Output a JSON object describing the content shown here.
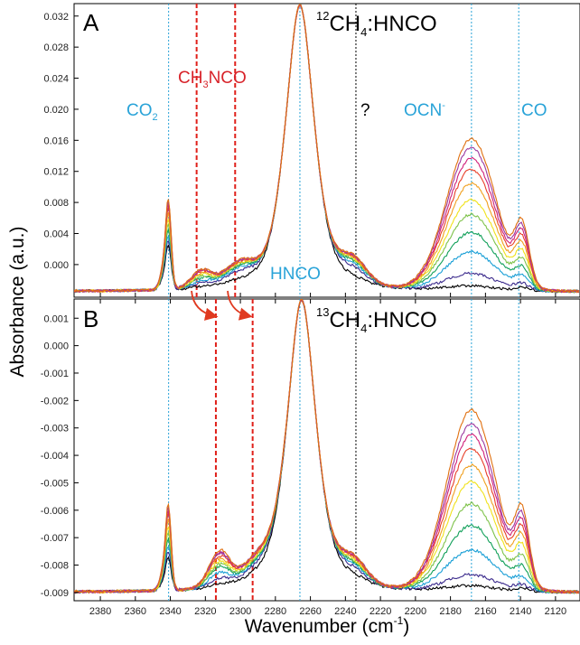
{
  "chart_data": {
    "type": "line",
    "xlabel": "Wavenumber (cm",
    "xlabel_sup": "-1",
    "xlabel_close": ")",
    "ylabel": "Absorbance (a.u.)",
    "x_range": [
      2395,
      2106
    ],
    "x_ticks": [
      2380,
      2360,
      2340,
      2320,
      2300,
      2280,
      2260,
      2240,
      2220,
      2200,
      2180,
      2160,
      2140,
      2120
    ],
    "x_tick_labels": [
      "2380",
      "2360",
      "2340",
      "2320",
      "2300",
      "2280",
      "2260",
      "2240",
      "2220",
      "2200",
      "2180",
      "2160",
      "2140",
      "2120"
    ],
    "colors": {
      "spectra": [
        "#000000",
        "#3b2a8c",
        "#1a9fd6",
        "#12a05a",
        "#7ec24a",
        "#f0e21a",
        "#f0a020",
        "#e8402a",
        "#d0207a",
        "#9b3aa0",
        "#e07010"
      ],
      "marker_blue": "#29a3d8",
      "marker_red": "#e0201a",
      "marker_black": "#000000",
      "ch3nco_text": "#d8232a",
      "arrow": "#e03a20"
    },
    "panels": [
      {
        "panel_label": "A",
        "title_sup": "12",
        "title_main": "CH",
        "title_sub": "4",
        "title_end": ":HNCO",
        "y_range": [
          -0.0042,
          0.0336
        ],
        "y_ticks": [
          0.032,
          0.028,
          0.024,
          0.02,
          0.016,
          0.012,
          0.008,
          0.004,
          0.0
        ],
        "y_tick_labels": [
          "0.032",
          "0.028",
          "0.024",
          "0.020",
          "0.016",
          "0.012",
          "0.008",
          "0.004",
          "0.000"
        ],
        "baseline": -0.0035,
        "noise_amp": 0.00016,
        "peaks": {
          "hnco_center": 2266,
          "hnco_top": 0.0334,
          "ocn_center": 2168
        },
        "series": [
          {
            "co2": 0.0048,
            "ch3nco": 0.0002,
            "shoulder": 0.001,
            "ocn": 0.0006,
            "co": 0.0004
          },
          {
            "co2": 0.0054,
            "ch3nco": 0.0006,
            "shoulder": 0.003,
            "ocn": 0.0022,
            "co": 0.0008
          },
          {
            "co2": 0.006,
            "ch3nco": 0.0009,
            "shoulder": 0.0038,
            "ocn": 0.005,
            "co": 0.0016
          },
          {
            "co2": 0.0066,
            "ch3nco": 0.0012,
            "shoulder": 0.0043,
            "ocn": 0.0075,
            "co": 0.0024
          },
          {
            "co2": 0.0072,
            "ch3nco": 0.0014,
            "shoulder": 0.0046,
            "ocn": 0.0098,
            "co": 0.0032
          },
          {
            "co2": 0.0078,
            "ch3nco": 0.0016,
            "shoulder": 0.0049,
            "ocn": 0.0117,
            "co": 0.004
          },
          {
            "co2": 0.0084,
            "ch3nco": 0.0018,
            "shoulder": 0.0051,
            "ocn": 0.0138,
            "co": 0.0048
          },
          {
            "co2": 0.009,
            "ch3nco": 0.002,
            "shoulder": 0.0053,
            "ocn": 0.0156,
            "co": 0.0054
          },
          {
            "co2": 0.0094,
            "ch3nco": 0.0021,
            "shoulder": 0.0055,
            "ocn": 0.017,
            "co": 0.006
          },
          {
            "co2": 0.0097,
            "ch3nco": 0.0022,
            "shoulder": 0.0056,
            "ocn": 0.0184,
            "co": 0.0065
          },
          {
            "co2": 0.01,
            "ch3nco": 0.0023,
            "shoulder": 0.0057,
            "ocn": 0.0195,
            "co": 0.007
          }
        ],
        "markers_blue": [
          2341,
          2266,
          2168,
          2141
        ],
        "markers_red": [
          2325,
          2303
        ],
        "marker_black": 2234,
        "labels": {
          "co2_main": "CO",
          "co2_sub": "2",
          "ch3nco_a": "CH",
          "ch3nco_sub": "3",
          "ch3nco_b": "NCO",
          "question": "?",
          "ocn_main": "OCN",
          "ocn_sup": "-",
          "co": "CO",
          "hnco": "HNCO"
        }
      },
      {
        "panel_label": "B",
        "title_sup": "13",
        "title_main": "CH",
        "title_sub": "4",
        "title_end": ":HNCO",
        "y_range": [
          -0.0093,
          0.0017
        ],
        "y_ticks": [
          0.001,
          0.0,
          -0.001,
          -0.002,
          -0.003,
          -0.004,
          -0.005,
          -0.006,
          -0.007,
          -0.008,
          -0.009
        ],
        "y_tick_labels": [
          "0.001",
          "0.000",
          "-0.001",
          "-0.002",
          "-0.003",
          "-0.004",
          "-0.005",
          "-0.006",
          "-0.007",
          "-0.008",
          "-0.009"
        ],
        "baseline": -0.009,
        "noise_amp": 5e-05,
        "peaks": {
          "hnco_center": 2265,
          "hnco_top": 0.00165,
          "ocn_center": 2168
        },
        "series": [
          {
            "co2": 0.001,
            "ch3nco": 0.0001,
            "shoulder": 0.0004,
            "ocn": 0.0002,
            "co": 0.0001
          },
          {
            "co2": 0.0012,
            "ch3nco": 0.0003,
            "shoulder": 0.0008,
            "ocn": 0.0006,
            "co": 0.0002
          },
          {
            "co2": 0.0014,
            "ch3nco": 0.0005,
            "shoulder": 0.001,
            "ocn": 0.0015,
            "co": 0.0004
          },
          {
            "co2": 0.0016,
            "ch3nco": 0.0007,
            "shoulder": 0.0011,
            "ocn": 0.0024,
            "co": 0.0007
          },
          {
            "co2": 0.0018,
            "ch3nco": 0.0008,
            "shoulder": 0.0012,
            "ocn": 0.0032,
            "co": 0.001
          },
          {
            "co2": 0.002,
            "ch3nco": 0.0009,
            "shoulder": 0.0013,
            "ocn": 0.004,
            "co": 0.0013
          },
          {
            "co2": 0.0022,
            "ch3nco": 0.001,
            "shoulder": 0.0014,
            "ocn": 0.0046,
            "co": 0.0016
          },
          {
            "co2": 0.0024,
            "ch3nco": 0.0011,
            "shoulder": 0.0015,
            "ocn": 0.0052,
            "co": 0.0018
          },
          {
            "co2": 0.0025,
            "ch3nco": 0.0012,
            "shoulder": 0.0015,
            "ocn": 0.0057,
            "co": 0.002
          },
          {
            "co2": 0.0026,
            "ch3nco": 0.0012,
            "shoulder": 0.0016,
            "ocn": 0.0061,
            "co": 0.0022
          },
          {
            "co2": 0.0027,
            "ch3nco": 0.0013,
            "shoulder": 0.0016,
            "ocn": 0.0066,
            "co": 0.0024
          }
        ],
        "markers_blue": [
          2341,
          2266,
          2168,
          2141
        ],
        "markers_red": [
          2314,
          2293
        ],
        "marker_black": 2234
      }
    ]
  }
}
